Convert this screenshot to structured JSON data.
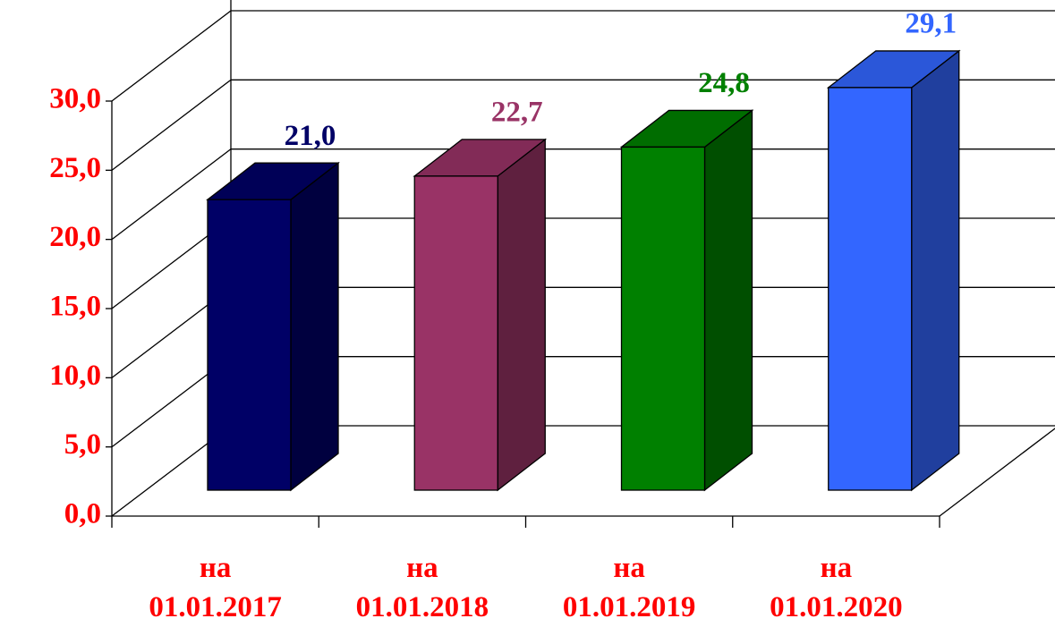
{
  "chart_data": {
    "type": "bar",
    "categories": [
      "на\n01.01.2017",
      "на\n01.01.2018",
      "на\n01.01.2019",
      "на\n01.01.2020"
    ],
    "values": [
      21.0,
      22.7,
      24.8,
      29.1
    ],
    "value_labels": [
      "21,0",
      "22,7",
      "24,8",
      "29,1"
    ],
    "colors": [
      "#000066",
      "#993366",
      "#008000",
      "#3366ff"
    ],
    "ylim": [
      0,
      30
    ],
    "yticks": [
      {
        "value": 0,
        "label": "0,0"
      },
      {
        "value": 5,
        "label": "5,0"
      },
      {
        "value": 10,
        "label": "10,0"
      },
      {
        "value": 15,
        "label": "15,0"
      },
      {
        "value": 20,
        "label": "20,0"
      },
      {
        "value": 25,
        "label": "25,0"
      },
      {
        "value": 30,
        "label": "30,0"
      }
    ],
    "grid": true
  }
}
